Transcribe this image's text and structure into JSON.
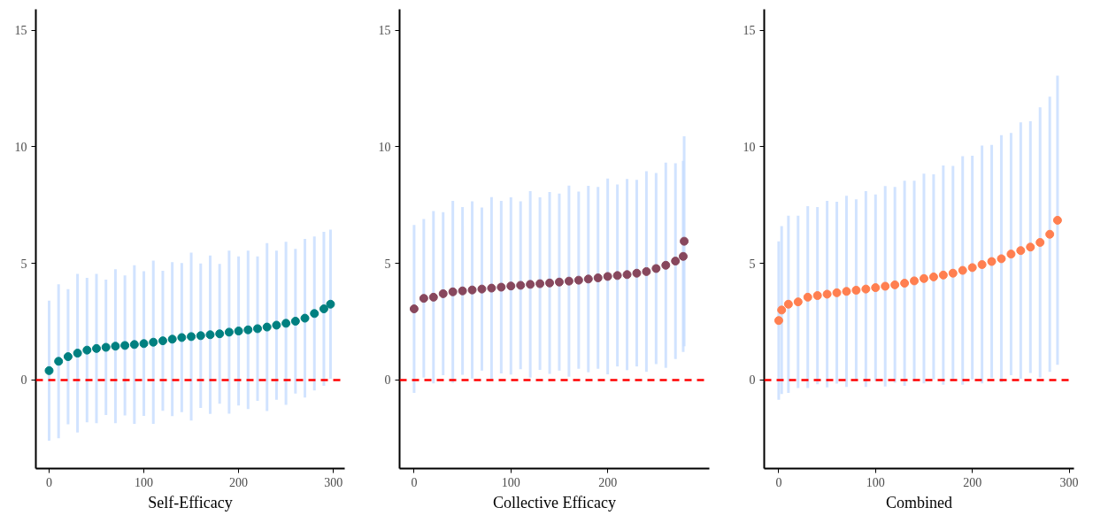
{
  "chart_data": [
    {
      "type": "scatter",
      "xlabel": "Self-Efficacy",
      "xlim": [
        -14,
        312
      ],
      "ylim": [
        -3.8,
        15.9
      ],
      "xticks": [
        0,
        100,
        200,
        300
      ],
      "yticks": [
        0,
        5,
        10,
        15
      ],
      "marker": "circle",
      "x": [
        0,
        10,
        20,
        30,
        40,
        50,
        60,
        70,
        80,
        90,
        100,
        110,
        120,
        130,
        140,
        150,
        160,
        170,
        180,
        190,
        200,
        210,
        220,
        230,
        240,
        250,
        260,
        270,
        280,
        290,
        297
      ],
      "series": [
        {
          "color": "#008080",
          "values": [
            0.4,
            0.8,
            1.0,
            1.15,
            1.28,
            1.35,
            1.4,
            1.45,
            1.48,
            1.52,
            1.56,
            1.62,
            1.68,
            1.75,
            1.82,
            1.86,
            1.9,
            1.94,
            1.98,
            2.05,
            2.1,
            2.15,
            2.2,
            2.27,
            2.35,
            2.43,
            2.52,
            2.65,
            2.85,
            3.05,
            3.25
          ],
          "errors": [
            3.0,
            3.3,
            2.9,
            3.4,
            3.1,
            3.2,
            2.9,
            3.3,
            3.0,
            3.4,
            3.1,
            3.5,
            3.0,
            3.3,
            3.2,
            3.6,
            3.1,
            3.4,
            3.0,
            3.5,
            3.2,
            3.4,
            3.1,
            3.6,
            3.2,
            3.5,
            3.1,
            3.4,
            3.3,
            3.3,
            3.2
          ]
        }
      ],
      "ref_lines": [
        {
          "axis": "y",
          "value": 0,
          "color": "#ff0000",
          "line_style": "dashed"
        }
      ]
    },
    {
      "type": "scatter",
      "xlabel": "Collective Efficacy",
      "xlim": [
        -15,
        305
      ],
      "ylim": [
        -3.8,
        15.9
      ],
      "xticks": [
        0,
        100,
        200
      ],
      "yticks": [
        0,
        5,
        10,
        15
      ],
      "marker": "circle",
      "x": [
        0,
        10,
        20,
        30,
        40,
        50,
        60,
        70,
        80,
        90,
        100,
        110,
        120,
        130,
        140,
        150,
        160,
        170,
        180,
        190,
        200,
        210,
        220,
        230,
        240,
        250,
        260,
        270,
        278,
        279
      ],
      "series": [
        {
          "color": "#87475d",
          "values": [
            3.05,
            3.5,
            3.55,
            3.7,
            3.78,
            3.82,
            3.86,
            3.9,
            3.94,
            3.98,
            4.03,
            4.06,
            4.1,
            4.13,
            4.16,
            4.2,
            4.24,
            4.28,
            4.33,
            4.38,
            4.44,
            4.48,
            4.52,
            4.58,
            4.65,
            4.78,
            4.92,
            5.1,
            5.3,
            5.95
          ],
          "errors": [
            3.6,
            3.4,
            3.7,
            3.5,
            3.9,
            3.6,
            3.8,
            3.5,
            3.9,
            3.7,
            3.8,
            3.6,
            4.0,
            3.7,
            3.9,
            3.8,
            4.1,
            3.8,
            4.0,
            3.9,
            4.2,
            3.9,
            4.1,
            4.0,
            4.3,
            4.1,
            4.4,
            4.2,
            4.1,
            4.5
          ]
        }
      ],
      "ref_lines": [
        {
          "axis": "y",
          "value": 0,
          "color": "#ff0000",
          "line_style": "dashed"
        }
      ]
    },
    {
      "type": "scatter",
      "xlabel": "Combined",
      "xlim": [
        -15,
        305
      ],
      "ylim": [
        -3.8,
        15.9
      ],
      "xticks": [
        0,
        100,
        200,
        300
      ],
      "yticks": [
        0,
        5,
        10,
        15
      ],
      "marker": "circle",
      "x": [
        0,
        3,
        10,
        20,
        30,
        40,
        50,
        60,
        70,
        80,
        90,
        100,
        110,
        120,
        130,
        140,
        150,
        160,
        170,
        180,
        190,
        200,
        210,
        220,
        230,
        240,
        250,
        260,
        270,
        280,
        288
      ],
      "series": [
        {
          "color": "#ff7f50",
          "values": [
            2.55,
            3.0,
            3.25,
            3.35,
            3.55,
            3.62,
            3.68,
            3.74,
            3.8,
            3.85,
            3.9,
            3.96,
            4.02,
            4.08,
            4.15,
            4.25,
            4.35,
            4.42,
            4.5,
            4.58,
            4.7,
            4.82,
            4.95,
            5.08,
            5.2,
            5.4,
            5.55,
            5.7,
            5.9,
            6.25,
            6.85
          ],
          "errors": [
            3.4,
            3.6,
            3.8,
            3.7,
            3.9,
            3.8,
            4.0,
            3.9,
            4.1,
            3.9,
            4.2,
            4.0,
            4.3,
            4.2,
            4.4,
            4.3,
            4.5,
            4.4,
            4.7,
            4.6,
            4.9,
            4.8,
            5.1,
            5.0,
            5.3,
            5.2,
            5.5,
            5.4,
            5.8,
            5.9,
            6.2
          ]
        }
      ],
      "ref_lines": [
        {
          "axis": "y",
          "value": 0,
          "color": "#ff0000",
          "line_style": "dashed"
        }
      ]
    }
  ]
}
